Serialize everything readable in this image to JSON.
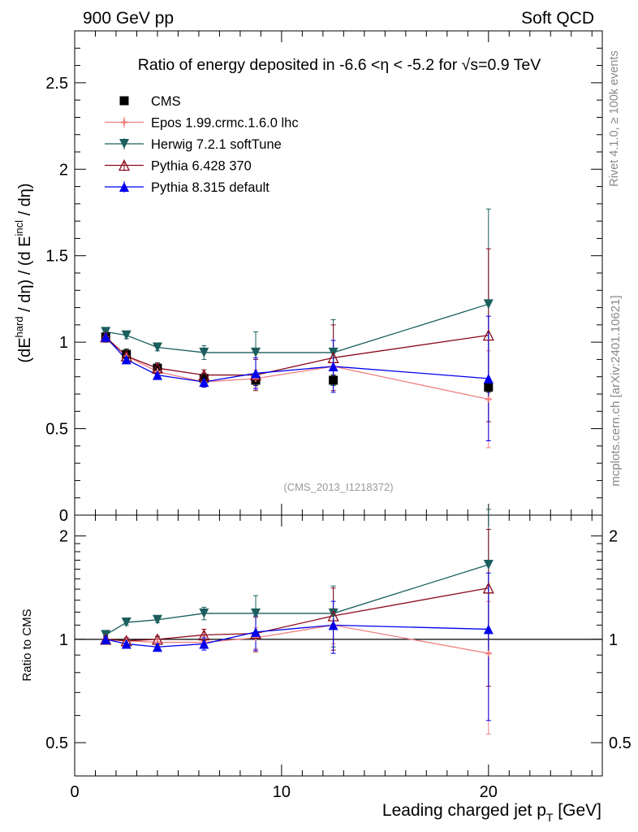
{
  "header": {
    "left": "900 GeV pp",
    "right": "Soft QCD"
  },
  "side_labels": {
    "rivet": "Rivet 4.1.0, ≥ 100k events",
    "mcplots": "mcplots.cern.ch [arXiv:2401.10621]"
  },
  "colors": {
    "cms": "#000000",
    "epos": "#f08080",
    "herwig": "#1b5e5e",
    "pythia6": "#8b0a1e",
    "pythia8": "#0000ee"
  },
  "chart_data": [
    {
      "type": "line",
      "panel": "main",
      "title": "Ratio of energy deposited in -6.6 <η < -5.2 for √s=0.9 TeV",
      "watermark": "(CMS_2013_I1218372)",
      "ylabel": "(dE^hard / dη) / (d E^incl / dη)",
      "ylabel_parts": {
        "p1": "(dE",
        "sup1": "hard",
        "p2": " / dη) / (d E",
        "sup2": "incl",
        "p3": " / dη)"
      },
      "xlim": [
        0,
        25.5
      ],
      "ylim": [
        0,
        2.8
      ],
      "yticks": [
        "0",
        "0.5",
        "1",
        "1.5",
        "2",
        "2.5"
      ],
      "legend_position": "top-left",
      "x": [
        1.5,
        2.5,
        4.0,
        6.25,
        8.75,
        12.5,
        20.0
      ],
      "series": [
        {
          "name": "CMS",
          "key": "cms",
          "marker": "square",
          "values": [
            1.03,
            0.93,
            0.85,
            0.79,
            0.78,
            0.78,
            0.74
          ],
          "errors": [
            0.03,
            0.03,
            0.03,
            0.03,
            0.03,
            0.03,
            0.03
          ],
          "line": false
        },
        {
          "name": "Epos 1.99.crmc.1.6.0 lhc",
          "key": "epos",
          "marker": "cross",
          "values": [
            1.03,
            0.92,
            0.83,
            0.77,
            0.79,
            0.86,
            0.67
          ],
          "errors": [
            0.02,
            0.02,
            0.02,
            0.03,
            0.05,
            0.1,
            0.28
          ],
          "line": true
        },
        {
          "name": "Herwig 7.2.1 softTune",
          "key": "herwig",
          "marker": "triangle-down",
          "values": [
            1.06,
            1.04,
            0.97,
            0.94,
            0.94,
            0.94,
            1.22
          ],
          "errors": [
            0.02,
            0.02,
            0.02,
            0.04,
            0.12,
            0.19,
            0.55
          ],
          "line": true
        },
        {
          "name": "Pythia 6.428 370",
          "key": "pythia6",
          "marker": "triangle-up-open",
          "values": [
            1.03,
            0.92,
            0.85,
            0.81,
            0.81,
            0.91,
            1.04
          ],
          "errors": [
            0.02,
            0.02,
            0.02,
            0.03,
            0.09,
            0.19,
            0.5
          ],
          "line": true
        },
        {
          "name": "Pythia 8.315 default",
          "key": "pythia8",
          "marker": "triangle-up",
          "values": [
            1.03,
            0.9,
            0.81,
            0.77,
            0.82,
            0.86,
            0.79
          ],
          "errors": [
            0.02,
            0.02,
            0.02,
            0.03,
            0.09,
            0.15,
            0.36
          ],
          "line": true
        }
      ]
    },
    {
      "type": "line",
      "panel": "ratio",
      "ylabel": "Ratio to CMS",
      "xlabel": "Leading charged jet p",
      "xlabel_sub": "T",
      "xlabel_unit": " [GeV]",
      "xlim": [
        0,
        25.5
      ],
      "ylim": [
        0.4,
        2.3
      ],
      "yscale": "log",
      "reference_line": 1,
      "yticks": [
        "0.5",
        "1",
        "2"
      ],
      "xticks": [
        "0",
        "10",
        "20"
      ],
      "x": [
        1.5,
        2.5,
        4.0,
        6.25,
        8.75,
        12.5,
        20.0
      ],
      "series": [
        {
          "name": "Epos 1.99.crmc.1.6.0 lhc",
          "key": "epos",
          "marker": "cross",
          "values": [
            1.0,
            0.99,
            0.98,
            0.98,
            1.01,
            1.1,
            0.91
          ],
          "errors": [
            0.02,
            0.02,
            0.02,
            0.04,
            0.07,
            0.13,
            0.38
          ],
          "line": true
        },
        {
          "name": "Herwig 7.2.1 softTune",
          "key": "herwig",
          "marker": "triangle-down",
          "values": [
            1.03,
            1.12,
            1.14,
            1.19,
            1.19,
            1.19,
            1.65
          ],
          "errors": [
            0.02,
            0.02,
            0.02,
            0.05,
            0.15,
            0.24,
            0.74
          ],
          "line": true
        },
        {
          "name": "Pythia 6.428 370",
          "key": "pythia6",
          "marker": "triangle-up-open",
          "values": [
            1.0,
            0.99,
            1.0,
            1.03,
            1.04,
            1.17,
            1.41
          ],
          "errors": [
            0.02,
            0.02,
            0.02,
            0.04,
            0.12,
            0.24,
            0.68
          ],
          "line": true
        },
        {
          "name": "Pythia 8.315 default",
          "key": "pythia8",
          "marker": "triangle-up",
          "values": [
            1.0,
            0.97,
            0.95,
            0.97,
            1.05,
            1.1,
            1.07
          ],
          "errors": [
            0.02,
            0.02,
            0.02,
            0.04,
            0.12,
            0.19,
            0.49
          ],
          "line": true
        }
      ]
    }
  ]
}
